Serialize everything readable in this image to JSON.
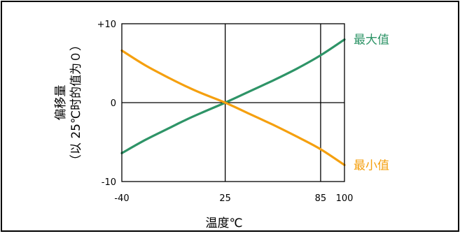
{
  "chart_data": {
    "type": "line",
    "title": "",
    "xlabel": "温度℃",
    "ylabel_line1": "偏移量",
    "ylabel_line2": "（以 25℃时的值为０）",
    "xlim": [
      -40,
      100
    ],
    "ylim": [
      -10,
      10
    ],
    "x_ticks": [
      -40,
      25,
      85,
      100
    ],
    "x_tick_labels": [
      "-40",
      "25",
      "85",
      "100"
    ],
    "y_ticks": [
      -10,
      0,
      10
    ],
    "y_tick_labels": [
      "-10",
      "0",
      "+10"
    ],
    "reference_lines_x": [
      25,
      85
    ],
    "reference_lines_y": [
      0
    ],
    "series": [
      {
        "name": "最大值",
        "color": "#2e9467",
        "x": [
          -40,
          -25,
          -10,
          0,
          10,
          25,
          40,
          55,
          70,
          85,
          100
        ],
        "y": [
          -6.4,
          -4.7,
          -3.2,
          -2.2,
          -1.3,
          0,
          1.4,
          2.8,
          4.3,
          6.0,
          8.0
        ]
      },
      {
        "name": "最小值",
        "color": "#f5a00f",
        "x": [
          -40,
          -25,
          -10,
          0,
          10,
          25,
          40,
          55,
          70,
          85,
          100
        ],
        "y": [
          6.6,
          4.7,
          3.1,
          2.1,
          1.2,
          0,
          -1.4,
          -2.8,
          -4.3,
          -5.9,
          -7.9
        ]
      }
    ]
  }
}
